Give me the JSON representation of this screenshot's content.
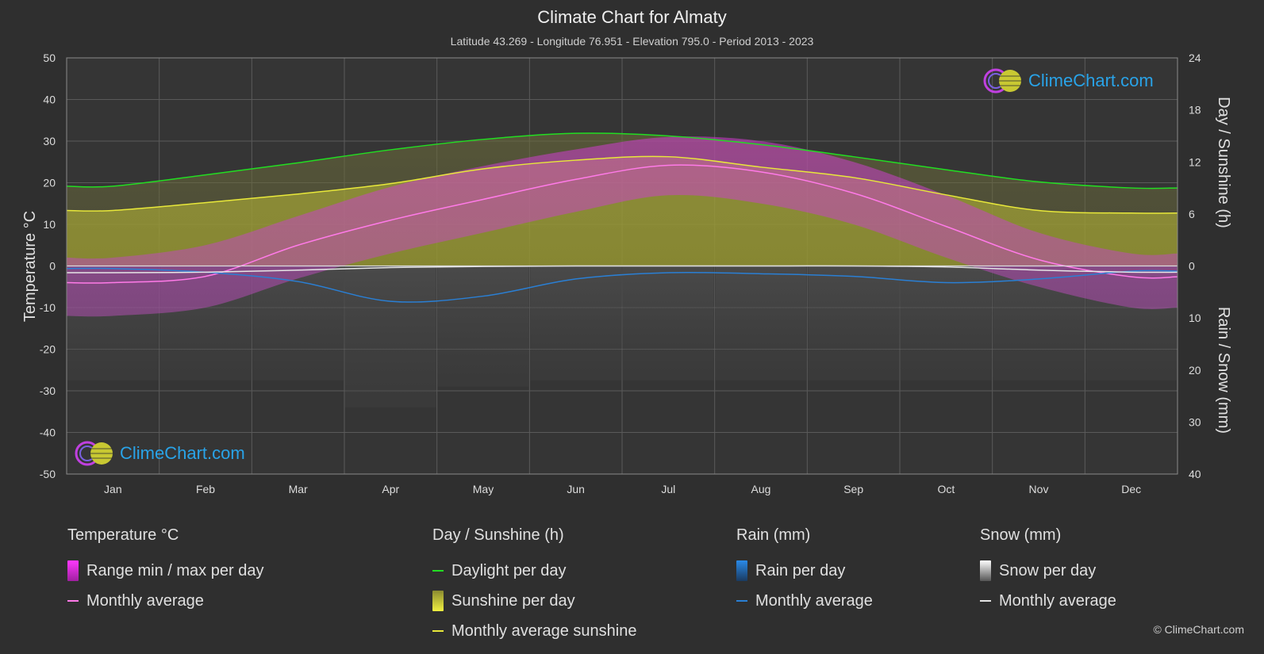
{
  "title": "Climate Chart for Almaty",
  "subtitle": "Latitude 43.269 - Longitude 76.951 - Elevation 795.0 - Period 2013 - 2023",
  "axis": {
    "left_label": "Temperature °C",
    "right_top_label": "Day / Sunshine (h)",
    "right_bottom_label": "Rain / Snow (mm)"
  },
  "brand": "ClimeChart.com",
  "copyright": "© ClimeChart.com",
  "chart_data": {
    "type": "area",
    "months": [
      "Jan",
      "Feb",
      "Mar",
      "Apr",
      "May",
      "Jun",
      "Jul",
      "Aug",
      "Sep",
      "Oct",
      "Nov",
      "Dec"
    ],
    "temperature_axis": {
      "min": -50,
      "max": 50,
      "ticks": [
        50,
        40,
        30,
        20,
        10,
        0,
        -10,
        -20,
        -30,
        -40,
        -50
      ]
    },
    "sunshine_axis": {
      "min": 0,
      "max": 24,
      "ticks": [
        24,
        18,
        12,
        6,
        0
      ]
    },
    "precip_axis": {
      "min": 0,
      "max": 40,
      "ticks": [
        0,
        10,
        20,
        30,
        40
      ]
    },
    "series": [
      {
        "name": "Daylight per day",
        "unit": "h",
        "color": "#22dd22",
        "values": [
          9.2,
          10.5,
          11.9,
          13.4,
          14.6,
          15.3,
          15.0,
          14.0,
          12.6,
          11.1,
          9.7,
          9.0
        ]
      },
      {
        "name": "Monthly average sunshine",
        "unit": "h",
        "color": "#e8e83a",
        "values": [
          6.4,
          7.3,
          8.3,
          9.5,
          11.2,
          12.2,
          12.6,
          11.4,
          10.2,
          8.2,
          6.4,
          6.1
        ]
      },
      {
        "name": "Temperature monthly average",
        "unit": "°C",
        "color": "#ff7ae8",
        "values": [
          -4.0,
          -2.5,
          5.0,
          11.0,
          16.0,
          20.8,
          24.2,
          22.6,
          17.5,
          9.5,
          1.5,
          -2.6
        ]
      },
      {
        "name": "Temperature daily max (upper range)",
        "unit": "°C",
        "values": [
          2,
          5,
          12,
          19,
          24,
          28,
          31,
          30,
          25,
          17,
          8,
          3
        ]
      },
      {
        "name": "Temperature daily min (lower range)",
        "unit": "°C",
        "values": [
          -12,
          -10,
          -3,
          3,
          8,
          13,
          17,
          15,
          10,
          2,
          -5,
          -10
        ]
      },
      {
        "name": "Rain monthly average",
        "unit": "mm",
        "color": "#2a7fd4",
        "values": [
          0.5,
          1.2,
          3.0,
          6.8,
          5.8,
          2.5,
          1.3,
          1.5,
          2.0,
          3.2,
          2.5,
          1.0
        ]
      },
      {
        "name": "Snow monthly average",
        "unit": "mm",
        "color": "#e6e6e6",
        "values": [
          1.3,
          1.2,
          0.8,
          0.3,
          0.1,
          0.0,
          0.0,
          0.0,
          0.0,
          0.2,
          0.8,
          1.2
        ]
      }
    ],
    "grid": true
  },
  "legend": {
    "temperature": {
      "title": "Temperature °C",
      "items": [
        "Range min / max per day",
        "Monthly average"
      ]
    },
    "sunshine": {
      "title": "Day / Sunshine (h)",
      "items": [
        "Daylight per day",
        "Sunshine per day",
        "Monthly average sunshine"
      ]
    },
    "rain": {
      "title": "Rain (mm)",
      "items": [
        "Rain per day",
        "Monthly average"
      ]
    },
    "snow": {
      "title": "Snow (mm)",
      "items": [
        "Snow per day",
        "Monthly average"
      ]
    }
  },
  "colors": {
    "background": "#2f2f2f",
    "plot_background": "#353535",
    "grid": "#5a5a5a",
    "daylight": "#22dd22",
    "sunshine": "#e8e83a",
    "temperature_avg": "#ff7ae8",
    "temperature_range": "#d13bd1",
    "rain": "#2a7fd4",
    "snow": "#e6e6e6",
    "brand": "#29a3e8"
  }
}
